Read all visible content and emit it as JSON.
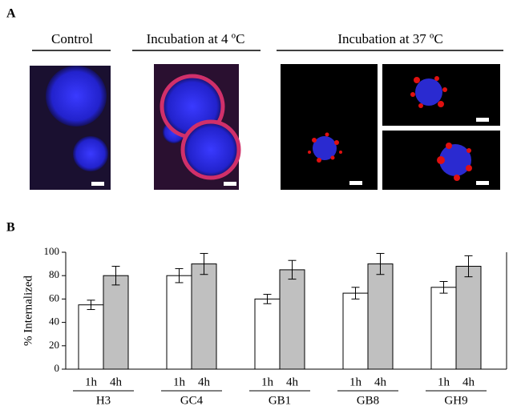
{
  "panel_a": {
    "label": "A",
    "headings": [
      "Control",
      "Incubation at 4 ºC",
      "Incubation at 37 ºC"
    ]
  },
  "panel_b": {
    "label": "B"
  },
  "chart_data": {
    "type": "bar",
    "ylabel": "% Internalized",
    "categories": [
      "H3",
      "GC4",
      "GB1",
      "GB8",
      "GH9"
    ],
    "series": [
      {
        "name": "1h",
        "color": "#ffffff",
        "values": [
          55,
          80,
          60,
          65,
          70
        ],
        "errors": [
          4,
          6,
          4,
          5,
          5
        ]
      },
      {
        "name": "4h",
        "color": "#c0c0c0",
        "values": [
          80,
          90,
          85,
          90,
          88
        ],
        "errors": [
          8,
          9,
          8,
          9,
          9
        ]
      }
    ],
    "ylim": [
      0,
      100
    ],
    "yticks": [
      0,
      20,
      40,
      60,
      80,
      100
    ]
  }
}
